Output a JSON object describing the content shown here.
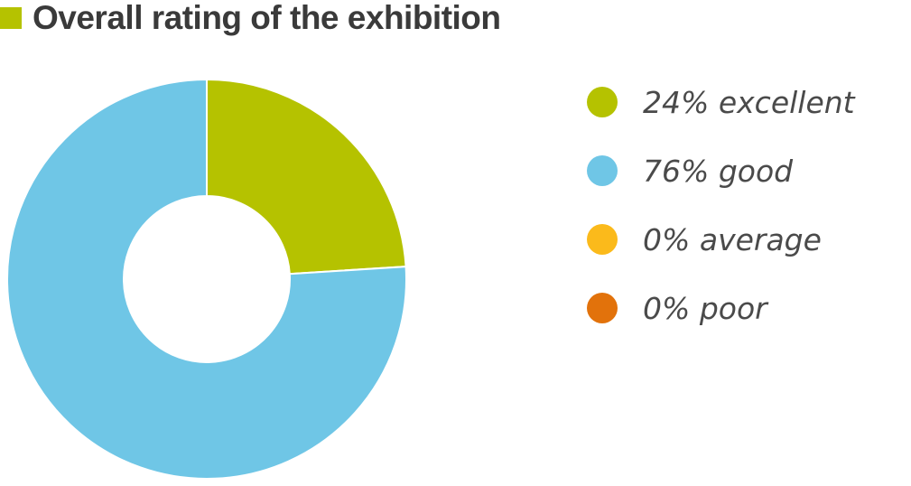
{
  "title": "Overall rating of the exhibition",
  "title_marker_color": "#b5c200",
  "chart_data": {
    "type": "pie",
    "variant": "donut",
    "title": "Overall rating of the exhibition",
    "slices": [
      {
        "label": "excellent",
        "value": 24,
        "color": "#b5c200"
      },
      {
        "label": "good",
        "value": 76,
        "color": "#6fc6e6"
      },
      {
        "label": "average",
        "value": 0,
        "color": "#fbba1b"
      },
      {
        "label": "poor",
        "value": 0,
        "color": "#e2720b"
      }
    ],
    "legend_position": "right"
  },
  "legend": [
    {
      "text": "24% excellent",
      "color": "#b5c200"
    },
    {
      "text": "76% good",
      "color": "#6fc6e6"
    },
    {
      "text": "0% average",
      "color": "#fbba1b"
    },
    {
      "text": "0% poor",
      "color": "#e2720b"
    }
  ]
}
